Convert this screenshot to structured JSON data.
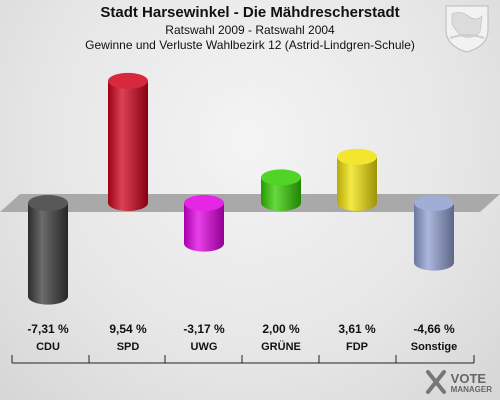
{
  "header": {
    "title": "Stadt Harsewinkel - Die Mähdrescherstadt",
    "subtitle": "Ratswahl 2009 - Ratswahl 2004",
    "description": "Gewinne und Verluste Wahlbezirk 12 (Astrid-Lindgren-Schule)"
  },
  "chart_data": {
    "type": "bar",
    "categories": [
      "CDU",
      "SPD",
      "UWG",
      "GRÜNE",
      "FDP",
      "Sonstige"
    ],
    "values": [
      -7.31,
      9.54,
      -3.17,
      2.0,
      3.61,
      -4.66
    ],
    "value_labels": [
      "-7,31 %",
      "9,54 %",
      "-3,17 %",
      "2,00 %",
      "3,61 %",
      "-4,66 %"
    ],
    "colors": [
      "#3a3a3a",
      "#d0021b",
      "#e000e0",
      "#33cc00",
      "#f2e20a",
      "#8f9fd0"
    ],
    "baseline": 0
  },
  "branding": {
    "logo_line1": "VOTE",
    "logo_line2": "MANAGER",
    "crest_icon": "coat-of-arms-icon"
  }
}
